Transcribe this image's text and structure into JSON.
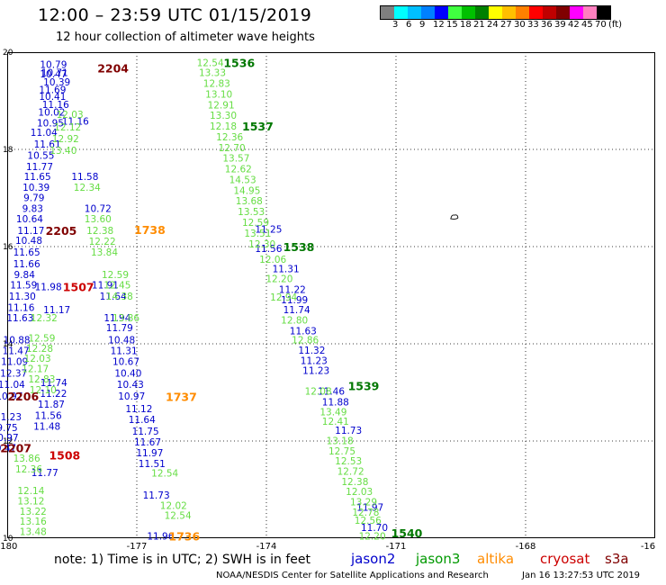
{
  "header": {
    "title": "12:00 – 23:59 UTC 01/15/2019",
    "subtitle": "12 hour collection of altimeter wave heights"
  },
  "color_scale": {
    "labels": [
      "3",
      "6",
      "9",
      "12",
      "15",
      "18",
      "21",
      "24",
      "27",
      "30",
      "33",
      "36",
      "39",
      "42",
      "45",
      "70",
      "(ft)"
    ],
    "colors": [
      "#7f7f7f",
      "#00ffff",
      "#00bfff",
      "#0080ff",
      "#0000ff",
      "#40ff40",
      "#00c000",
      "#008000",
      "#ffff00",
      "#ffc000",
      "#ff8000",
      "#ff0000",
      "#c00000",
      "#800000",
      "#ff00ff",
      "#ff80c0",
      "#000000"
    ]
  },
  "footer": {
    "note": "note:  1) Time is in UTC;  2) SWH is in feet",
    "satellites": [
      {
        "name": "jason2",
        "color": "#0000cc"
      },
      {
        "name": "jason3",
        "color": "#009900"
      },
      {
        "name": "altika",
        "color": "#ff8c00"
      },
      {
        "name": "cryosat",
        "color": "#cc0000"
      },
      {
        "name": "s3a",
        "color": "#800000"
      }
    ],
    "credit": "NOAA/NESDIS Center for Satellite Applications and Research",
    "timestamp": "Jan 16 13:27:53 UTC 2019"
  },
  "chart_data": {
    "type": "scatter",
    "title": "12 hour collection of altimeter wave heights",
    "xlim": [
      -180,
      -165
    ],
    "ylim": [
      10,
      20
    ],
    "xticks": [
      "-180",
      "-177",
      "-174",
      "-171",
      "-168",
      "-16"
    ],
    "yticks": [
      "20",
      "18",
      "16",
      "14",
      "12",
      "10"
    ],
    "grid": true,
    "tracks": [
      {
        "satellite": "jason2",
        "color": "#0000cc",
        "points": [
          {
            "lon": -178.93,
            "lat": 19.75,
            "swh": "10.79"
          },
          {
            "lon": -178.9,
            "lat": 19.58,
            "swh": "10.71"
          },
          {
            "lon": -178.93,
            "lat": 19.56,
            "swh": "10.47"
          },
          {
            "lon": -178.85,
            "lat": 19.39,
            "swh": "10.39"
          },
          {
            "lon": -178.95,
            "lat": 19.23,
            "swh": "11.69"
          },
          {
            "lon": -178.95,
            "lat": 19.09,
            "swh": "10.41"
          },
          {
            "lon": -178.88,
            "lat": 18.93,
            "swh": "11.16"
          },
          {
            "lon": -178.97,
            "lat": 18.77,
            "swh": "10.02"
          },
          {
            "lon": -179.0,
            "lat": 18.55,
            "swh": "10.95"
          },
          {
            "lon": -179.15,
            "lat": 18.35,
            "swh": "11.04"
          },
          {
            "lon": -179.07,
            "lat": 18.11,
            "swh": "11.61"
          },
          {
            "lon": -179.22,
            "lat": 17.88,
            "swh": "10.55"
          },
          {
            "lon": -179.25,
            "lat": 17.65,
            "swh": "11.77"
          },
          {
            "lon": -179.3,
            "lat": 17.44,
            "swh": "11.65"
          },
          {
            "lon": -179.33,
            "lat": 17.22,
            "swh": "10.39"
          },
          {
            "lon": -179.38,
            "lat": 17.01,
            "swh": "9.79"
          },
          {
            "lon": -179.41,
            "lat": 16.79,
            "swh": "9.83"
          },
          {
            "lon": -179.48,
            "lat": 16.57,
            "swh": "10.64"
          },
          {
            "lon": -179.45,
            "lat": 16.33,
            "swh": "11.17"
          },
          {
            "lon": -179.5,
            "lat": 16.13,
            "swh": "10.48"
          },
          {
            "lon": -179.55,
            "lat": 15.89,
            "swh": "11.65"
          },
          {
            "lon": -179.55,
            "lat": 15.65,
            "swh": "11.66"
          },
          {
            "lon": -179.6,
            "lat": 15.43,
            "swh": "9.84"
          },
          {
            "lon": -179.62,
            "lat": 15.21,
            "swh": "11.59"
          },
          {
            "lon": -179.65,
            "lat": 14.98,
            "swh": "11.30"
          },
          {
            "lon": -179.68,
            "lat": 14.75,
            "swh": "11.16"
          },
          {
            "lon": -179.7,
            "lat": 14.54,
            "swh": "11.63"
          },
          {
            "lon": -179.78,
            "lat": 14.08,
            "swh": "10.88"
          },
          {
            "lon": -179.8,
            "lat": 13.86,
            "swh": "11.47"
          },
          {
            "lon": -179.83,
            "lat": 13.64,
            "swh": "11.09"
          },
          {
            "lon": -179.85,
            "lat": 13.4,
            "swh": "12.37"
          },
          {
            "lon": -179.9,
            "lat": 13.17,
            "swh": "11.04"
          },
          {
            "lon": -179.95,
            "lat": 12.93,
            "swh": "10.97"
          },
          {
            "lon": -179.98,
            "lat": 12.5,
            "swh": "11.23"
          },
          {
            "lon": -180.0,
            "lat": 12.28,
            "swh": "9.75"
          },
          {
            "lon": -180.05,
            "lat": 12.07,
            "swh": "10.97"
          },
          {
            "lon": -180.1,
            "lat": 11.86,
            "swh": "10.47"
          },
          {
            "lon": -179.05,
            "lat": 15.18,
            "swh": "11.98"
          },
          {
            "lon": -178.85,
            "lat": 14.7,
            "swh": "11.17"
          },
          {
            "lon": -178.92,
            "lat": 13.2,
            "swh": "11.74"
          },
          {
            "lon": -178.93,
            "lat": 12.98,
            "swh": "11.22"
          },
          {
            "lon": -178.98,
            "lat": 12.76,
            "swh": "11.87"
          },
          {
            "lon": -179.05,
            "lat": 12.53,
            "swh": "11.56"
          },
          {
            "lon": -179.08,
            "lat": 12.31,
            "swh": "11.48"
          },
          {
            "lon": -179.13,
            "lat": 11.35,
            "swh": "11.77"
          },
          {
            "lon": -178.42,
            "lat": 18.58,
            "swh": "11.16"
          },
          {
            "lon": -178.2,
            "lat": 17.44,
            "swh": "11.58"
          },
          {
            "lon": -177.9,
            "lat": 16.79,
            "swh": "10.72"
          },
          {
            "lon": -177.73,
            "lat": 15.21,
            "swh": "11.91"
          },
          {
            "lon": -177.55,
            "lat": 14.98,
            "swh": "11.64"
          },
          {
            "lon": -177.45,
            "lat": 14.54,
            "swh": "11.94"
          },
          {
            "lon": -177.4,
            "lat": 14.33,
            "swh": "11.79"
          },
          {
            "lon": -177.35,
            "lat": 14.08,
            "swh": "10.48"
          },
          {
            "lon": -177.3,
            "lat": 13.86,
            "swh": "11.31"
          },
          {
            "lon": -177.25,
            "lat": 13.64,
            "swh": "10.67"
          },
          {
            "lon": -177.2,
            "lat": 13.4,
            "swh": "10.40"
          },
          {
            "lon": -177.15,
            "lat": 13.17,
            "swh": "10.43"
          },
          {
            "lon": -177.12,
            "lat": 12.93,
            "swh": "10.97"
          },
          {
            "lon": -176.95,
            "lat": 12.67,
            "swh": "11.12"
          },
          {
            "lon": -176.88,
            "lat": 12.44,
            "swh": "11.64"
          },
          {
            "lon": -176.8,
            "lat": 12.2,
            "swh": "11.75"
          },
          {
            "lon": -176.75,
            "lat": 11.98,
            "swh": "11.67"
          },
          {
            "lon": -176.7,
            "lat": 11.76,
            "swh": "11.97"
          },
          {
            "lon": -176.65,
            "lat": 11.54,
            "swh": "11.51"
          },
          {
            "lon": -176.55,
            "lat": 10.89,
            "swh": "11.73"
          },
          {
            "lon": -176.45,
            "lat": 10.05,
            "swh": "11.96"
          },
          {
            "lon": -173.95,
            "lat": 16.36,
            "swh": "11.25"
          },
          {
            "lon": -173.95,
            "lat": 15.96,
            "swh": "11.56"
          },
          {
            "lon": -173.55,
            "lat": 15.55,
            "swh": "11.31"
          },
          {
            "lon": -173.4,
            "lat": 15.12,
            "swh": "11.22"
          },
          {
            "lon": -173.35,
            "lat": 14.91,
            "swh": "11.99"
          },
          {
            "lon": -173.3,
            "lat": 14.7,
            "swh": "11.74"
          },
          {
            "lon": -173.15,
            "lat": 14.27,
            "swh": "11.63"
          },
          {
            "lon": -172.95,
            "lat": 13.87,
            "swh": "11.32"
          },
          {
            "lon": -172.9,
            "lat": 13.66,
            "swh": "11.23"
          },
          {
            "lon": -172.85,
            "lat": 13.45,
            "swh": "11.23"
          },
          {
            "lon": -172.5,
            "lat": 13.03,
            "swh": "11.46"
          },
          {
            "lon": -172.4,
            "lat": 12.81,
            "swh": "11.88"
          },
          {
            "lon": -172.1,
            "lat": 12.22,
            "swh": "11.73"
          },
          {
            "lon": -171.6,
            "lat": 10.64,
            "swh": "11.97"
          },
          {
            "lon": -171.5,
            "lat": 10.22,
            "swh": "11.70"
          }
        ]
      },
      {
        "satellite": "jason3",
        "color": "#66dd44",
        "points": [
          {
            "lon": -178.55,
            "lat": 18.72,
            "swh": "12.03"
          },
          {
            "lon": -178.6,
            "lat": 18.46,
            "swh": "12.12"
          },
          {
            "lon": -178.65,
            "lat": 18.22,
            "swh": "12.92"
          },
          {
            "lon": -178.7,
            "lat": 17.98,
            "swh": "13.40"
          },
          {
            "lon": -178.15,
            "lat": 17.22,
            "swh": "12.34"
          },
          {
            "lon": -177.9,
            "lat": 16.57,
            "swh": "13.60"
          },
          {
            "lon": -177.85,
            "lat": 16.33,
            "swh": "12.38"
          },
          {
            "lon": -177.8,
            "lat": 16.11,
            "swh": "12.22"
          },
          {
            "lon": -177.75,
            "lat": 15.89,
            "swh": "13.84"
          },
          {
            "lon": -177.5,
            "lat": 15.43,
            "swh": "12.59"
          },
          {
            "lon": -177.45,
            "lat": 15.21,
            "swh": "12.45"
          },
          {
            "lon": -177.4,
            "lat": 14.98,
            "swh": "14.38"
          },
          {
            "lon": -177.25,
            "lat": 14.54,
            "swh": "13.86"
          },
          {
            "lon": -179.15,
            "lat": 14.54,
            "swh": "12.32"
          },
          {
            "lon": -179.2,
            "lat": 14.12,
            "swh": "12.59"
          },
          {
            "lon": -179.25,
            "lat": 13.91,
            "swh": "12.28"
          },
          {
            "lon": -179.3,
            "lat": 13.7,
            "swh": "12.03"
          },
          {
            "lon": -179.35,
            "lat": 13.49,
            "swh": "12.17"
          },
          {
            "lon": -179.2,
            "lat": 13.28,
            "swh": "12.83"
          },
          {
            "lon": -179.17,
            "lat": 13.06,
            "swh": "12.10"
          },
          {
            "lon": -179.55,
            "lat": 11.65,
            "swh": "13.86"
          },
          {
            "lon": -179.5,
            "lat": 11.43,
            "swh": "12.36"
          },
          {
            "lon": -179.45,
            "lat": 10.98,
            "swh": "12.14"
          },
          {
            "lon": -179.45,
            "lat": 10.77,
            "swh": "13.12"
          },
          {
            "lon": -179.4,
            "lat": 10.56,
            "swh": "13.22"
          },
          {
            "lon": -179.4,
            "lat": 10.35,
            "swh": "13.16"
          },
          {
            "lon": -179.4,
            "lat": 10.14,
            "swh": "13.48"
          },
          {
            "lon": -176.35,
            "lat": 11.34,
            "swh": "12.54"
          },
          {
            "lon": -176.15,
            "lat": 10.68,
            "swh": "12.02"
          },
          {
            "lon": -176.05,
            "lat": 10.47,
            "swh": "12.54"
          },
          {
            "lon": -175.3,
            "lat": 19.79,
            "swh": "12.54"
          },
          {
            "lon": -175.25,
            "lat": 19.58,
            "swh": "13.33"
          },
          {
            "lon": -175.15,
            "lat": 19.36,
            "swh": "12.83"
          },
          {
            "lon": -175.1,
            "lat": 19.14,
            "swh": "13.10"
          },
          {
            "lon": -175.05,
            "lat": 18.92,
            "swh": "12.91"
          },
          {
            "lon": -175.0,
            "lat": 18.7,
            "swh": "13.30"
          },
          {
            "lon": -175.0,
            "lat": 18.48,
            "swh": "12.18"
          },
          {
            "lon": -174.85,
            "lat": 18.26,
            "swh": "12.36"
          },
          {
            "lon": -174.8,
            "lat": 18.04,
            "swh": "12.70"
          },
          {
            "lon": -174.7,
            "lat": 17.82,
            "swh": "13.57"
          },
          {
            "lon": -174.65,
            "lat": 17.6,
            "swh": "12.62"
          },
          {
            "lon": -174.55,
            "lat": 17.38,
            "swh": "14.53"
          },
          {
            "lon": -174.45,
            "lat": 17.16,
            "swh": "14.95"
          },
          {
            "lon": -174.4,
            "lat": 16.94,
            "swh": "13.68"
          },
          {
            "lon": -174.35,
            "lat": 16.72,
            "swh": "13.53"
          },
          {
            "lon": -174.25,
            "lat": 16.5,
            "swh": "12.59"
          },
          {
            "lon": -174.2,
            "lat": 16.28,
            "swh": "13.51"
          },
          {
            "lon": -174.1,
            "lat": 16.06,
            "swh": "12.30"
          },
          {
            "lon": -173.85,
            "lat": 15.74,
            "swh": "12.06"
          },
          {
            "lon": -173.7,
            "lat": 15.34,
            "swh": "12.20"
          },
          {
            "lon": -173.6,
            "lat": 14.96,
            "swh": "12.94"
          },
          {
            "lon": -173.35,
            "lat": 14.49,
            "swh": "12.80"
          },
          {
            "lon": -173.1,
            "lat": 14.08,
            "swh": "12.86"
          },
          {
            "lon": -172.8,
            "lat": 13.03,
            "swh": "12.08"
          },
          {
            "lon": -172.45,
            "lat": 12.6,
            "swh": "13.49"
          },
          {
            "lon": -172.4,
            "lat": 12.41,
            "swh": "12.41"
          },
          {
            "lon": -172.3,
            "lat": 12.01,
            "swh": "13.18"
          },
          {
            "lon": -172.25,
            "lat": 11.8,
            "swh": "12.75"
          },
          {
            "lon": -172.1,
            "lat": 11.59,
            "swh": "12.53"
          },
          {
            "lon": -172.05,
            "lat": 11.38,
            "swh": "12.72"
          },
          {
            "lon": -171.95,
            "lat": 11.17,
            "swh": "12.38"
          },
          {
            "lon": -171.85,
            "lat": 10.96,
            "swh": "12.03"
          },
          {
            "lon": -171.75,
            "lat": 10.75,
            "swh": "13.29"
          },
          {
            "lon": -171.7,
            "lat": 10.54,
            "swh": "12.78"
          },
          {
            "lon": -171.65,
            "lat": 10.37,
            "swh": "12.56"
          },
          {
            "lon": -171.55,
            "lat": 10.05,
            "swh": "12.20"
          }
        ]
      }
    ],
    "pass_labels": [
      {
        "text": "2204",
        "satellite": "s3a",
        "color": "#800000",
        "lon": -177.55,
        "lat": 19.68
      },
      {
        "text": "2205",
        "satellite": "s3a",
        "color": "#800000",
        "lon": -178.75,
        "lat": 16.33
      },
      {
        "text": "2206",
        "satellite": "s3a",
        "color": "#800000",
        "lon": -179.63,
        "lat": 12.93
      },
      {
        "text": "2207",
        "satellite": "s3a",
        "color": "#800000",
        "lon": -179.8,
        "lat": 11.86
      },
      {
        "text": "1507",
        "satellite": "cryosat",
        "color": "#cc0000",
        "lon": -178.35,
        "lat": 15.18
      },
      {
        "text": "1508",
        "satellite": "cryosat",
        "color": "#cc0000",
        "lon": -178.67,
        "lat": 11.71
      },
      {
        "text": "1738",
        "satellite": "altika",
        "color": "#ff8c00",
        "lon": -176.7,
        "lat": 16.35
      },
      {
        "text": "1737",
        "satellite": "altika",
        "color": "#ff8c00",
        "lon": -175.97,
        "lat": 12.92
      },
      {
        "text": "1736",
        "satellite": "altika",
        "color": "#ff8c00",
        "lon": -175.9,
        "lat": 10.05
      },
      {
        "text": "1536",
        "satellite": "jason3",
        "color": "#007700",
        "lon": -174.63,
        "lat": 19.79
      },
      {
        "text": "1537",
        "satellite": "jason3",
        "color": "#007700",
        "lon": -174.2,
        "lat": 18.48
      },
      {
        "text": "1538",
        "satellite": "jason3",
        "color": "#007700",
        "lon": -173.25,
        "lat": 16.0
      },
      {
        "text": "1539",
        "satellite": "jason3",
        "color": "#007700",
        "lon": -171.75,
        "lat": 13.14
      },
      {
        "text": "1540",
        "satellite": "jason3",
        "color": "#007700",
        "lon": -170.75,
        "lat": 10.11
      }
    ],
    "markers": [
      {
        "type": "island-icon",
        "lon": -169.65,
        "lat": 16.61
      }
    ]
  }
}
